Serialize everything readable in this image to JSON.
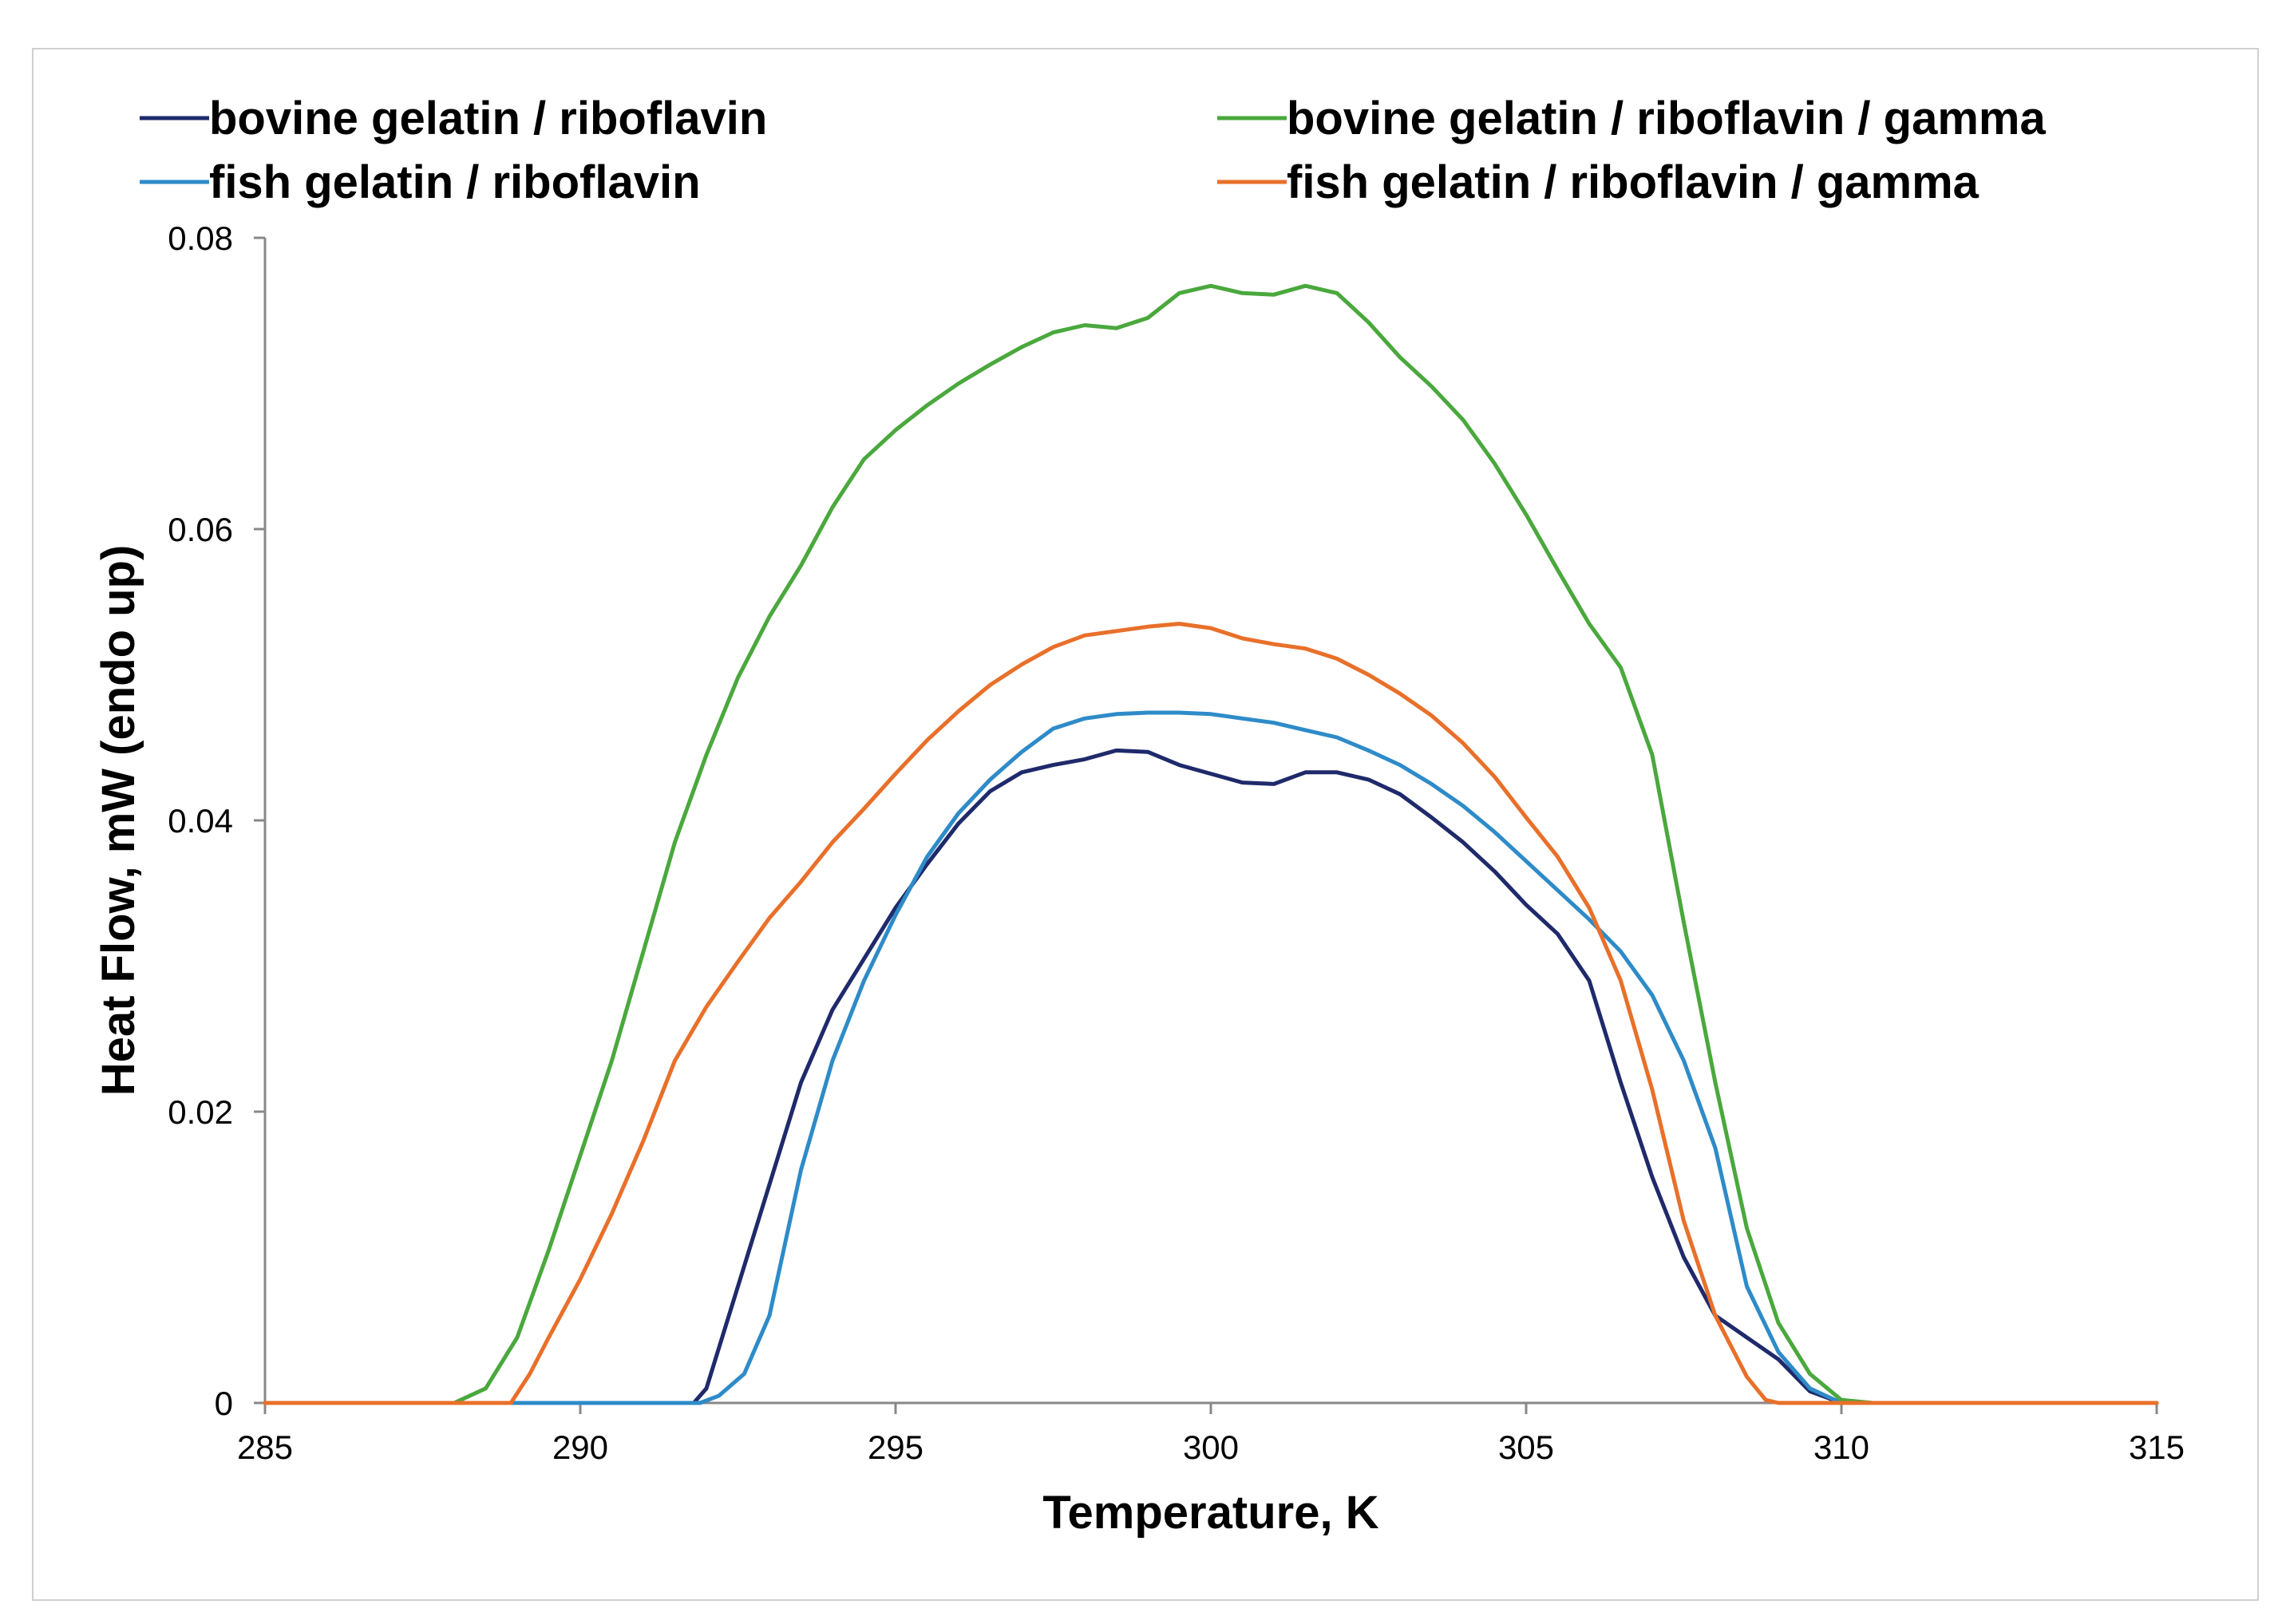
{
  "chart_data": {
    "type": "line",
    "title": "",
    "xlabel": "Temperature, K",
    "ylabel": "Heat Flow,  mW (endo up)",
    "xlim": [
      285,
      315
    ],
    "ylim": [
      0,
      0.08
    ],
    "x_ticks": [
      285,
      290,
      295,
      300,
      305,
      310,
      315
    ],
    "x_tick_labels": [
      "285",
      "290",
      "295",
      "300",
      "305",
      "310",
      "315"
    ],
    "y_ticks": [
      0,
      0.02,
      0.04,
      0.06,
      0.08
    ],
    "y_tick_labels": [
      "0",
      "0.02",
      "0.04",
      "0.06",
      "0.08"
    ],
    "grid": false,
    "legend_position": "top",
    "series": [
      {
        "name": "bovine gelatin / riboflavin",
        "color": "#1f2a6b",
        "points": [
          [
            285,
            0
          ],
          [
            291.8,
            0
          ],
          [
            292,
            0.001
          ],
          [
            292.5,
            0.008
          ],
          [
            293,
            0.015
          ],
          [
            293.5,
            0.022
          ],
          [
            294,
            0.027
          ],
          [
            294.5,
            0.0305
          ],
          [
            295,
            0.034
          ],
          [
            295.5,
            0.037
          ],
          [
            296,
            0.0398
          ],
          [
            296.5,
            0.042
          ],
          [
            297,
            0.0433
          ],
          [
            297.5,
            0.0438
          ],
          [
            298,
            0.0442
          ],
          [
            298.5,
            0.0448
          ],
          [
            299,
            0.0447
          ],
          [
            299.5,
            0.0438
          ],
          [
            300,
            0.0432
          ],
          [
            300.5,
            0.0426
          ],
          [
            301,
            0.0425
          ],
          [
            301.5,
            0.0433
          ],
          [
            302,
            0.0433
          ],
          [
            302.5,
            0.0428
          ],
          [
            303,
            0.0418
          ],
          [
            303.5,
            0.0402
          ],
          [
            304,
            0.0385
          ],
          [
            304.5,
            0.0365
          ],
          [
            305,
            0.0342
          ],
          [
            305.5,
            0.0322
          ],
          [
            306,
            0.029
          ],
          [
            306.5,
            0.022
          ],
          [
            307,
            0.0155
          ],
          [
            307.5,
            0.01
          ],
          [
            308,
            0.006
          ],
          [
            308.5,
            0.0045
          ],
          [
            309,
            0.003
          ],
          [
            309.5,
            0.0008
          ],
          [
            310,
            0
          ],
          [
            315,
            0
          ]
        ]
      },
      {
        "name": "fish gelatin / riboflavin",
        "color": "#2e8bc8",
        "points": [
          [
            285,
            0
          ],
          [
            291.9,
            0
          ],
          [
            292.2,
            0.0005
          ],
          [
            292.6,
            0.002
          ],
          [
            293,
            0.006
          ],
          [
            293.5,
            0.016
          ],
          [
            294,
            0.0235
          ],
          [
            294.5,
            0.029
          ],
          [
            295,
            0.0335
          ],
          [
            295.5,
            0.0375
          ],
          [
            296,
            0.0405
          ],
          [
            296.5,
            0.0428
          ],
          [
            297,
            0.0447
          ],
          [
            297.5,
            0.0463
          ],
          [
            298,
            0.047
          ],
          [
            298.5,
            0.0473
          ],
          [
            299,
            0.0474
          ],
          [
            299.5,
            0.0474
          ],
          [
            300,
            0.0473
          ],
          [
            300.5,
            0.047
          ],
          [
            301,
            0.0467
          ],
          [
            301.5,
            0.0462
          ],
          [
            302,
            0.0457
          ],
          [
            302.5,
            0.0448
          ],
          [
            303,
            0.0438
          ],
          [
            303.5,
            0.0425
          ],
          [
            304,
            0.041
          ],
          [
            304.5,
            0.0392
          ],
          [
            305,
            0.0372
          ],
          [
            305.5,
            0.0352
          ],
          [
            306,
            0.0332
          ],
          [
            306.5,
            0.031
          ],
          [
            307,
            0.028
          ],
          [
            307.5,
            0.0235
          ],
          [
            308,
            0.0175
          ],
          [
            308.5,
            0.008
          ],
          [
            309,
            0.0035
          ],
          [
            309.5,
            0.001
          ],
          [
            310,
            0
          ],
          [
            315,
            0
          ]
        ]
      },
      {
        "name": "bovine gelatin / riboflavin / gamma",
        "color": "#4aa83d",
        "points": [
          [
            285,
            0
          ],
          [
            288,
            0
          ],
          [
            288.5,
            0.001
          ],
          [
            289,
            0.0045
          ],
          [
            289.5,
            0.0105
          ],
          [
            290,
            0.017
          ],
          [
            290.5,
            0.0235
          ],
          [
            291,
            0.031
          ],
          [
            291.5,
            0.0385
          ],
          [
            292,
            0.0445
          ],
          [
            292.5,
            0.0498
          ],
          [
            293,
            0.054
          ],
          [
            293.5,
            0.0575
          ],
          [
            294,
            0.0615
          ],
          [
            294.5,
            0.0648
          ],
          [
            295,
            0.0668
          ],
          [
            295.5,
            0.0685
          ],
          [
            296,
            0.07
          ],
          [
            296.5,
            0.0713
          ],
          [
            297,
            0.0725
          ],
          [
            297.5,
            0.0735
          ],
          [
            298,
            0.074
          ],
          [
            298.5,
            0.0738
          ],
          [
            299,
            0.0745
          ],
          [
            299.5,
            0.0762
          ],
          [
            300,
            0.0767
          ],
          [
            300.5,
            0.0762
          ],
          [
            301,
            0.0761
          ],
          [
            301.5,
            0.0767
          ],
          [
            302,
            0.0762
          ],
          [
            302.5,
            0.0742
          ],
          [
            303,
            0.0718
          ],
          [
            303.5,
            0.0698
          ],
          [
            304,
            0.0675
          ],
          [
            304.5,
            0.0645
          ],
          [
            305,
            0.061
          ],
          [
            305.5,
            0.0572
          ],
          [
            306,
            0.0535
          ],
          [
            306.5,
            0.0505
          ],
          [
            307,
            0.0445
          ],
          [
            307.5,
            0.033
          ],
          [
            308,
            0.022
          ],
          [
            308.5,
            0.012
          ],
          [
            309,
            0.0055
          ],
          [
            309.5,
            0.002
          ],
          [
            310,
            0.0002
          ],
          [
            310.5,
            0
          ],
          [
            315,
            0
          ]
        ]
      },
      {
        "name": "fish gelatin / riboflavin / gamma",
        "color": "#e8702a",
        "points": [
          [
            285,
            0
          ],
          [
            288.9,
            0
          ],
          [
            289.2,
            0.002
          ],
          [
            289.5,
            0.0045
          ],
          [
            290,
            0.0085
          ],
          [
            290.5,
            0.013
          ],
          [
            291,
            0.018
          ],
          [
            291.5,
            0.0235
          ],
          [
            292,
            0.0272
          ],
          [
            292.5,
            0.0303
          ],
          [
            293,
            0.0333
          ],
          [
            293.5,
            0.0358
          ],
          [
            294,
            0.0385
          ],
          [
            294.5,
            0.0408
          ],
          [
            295,
            0.0432
          ],
          [
            295.5,
            0.0455
          ],
          [
            296,
            0.0475
          ],
          [
            296.5,
            0.0493
          ],
          [
            297,
            0.0507
          ],
          [
            297.5,
            0.0519
          ],
          [
            298,
            0.0527
          ],
          [
            298.5,
            0.053
          ],
          [
            299,
            0.0533
          ],
          [
            299.5,
            0.0535
          ],
          [
            300,
            0.0532
          ],
          [
            300.5,
            0.0525
          ],
          [
            301,
            0.0521
          ],
          [
            301.5,
            0.0518
          ],
          [
            302,
            0.0511
          ],
          [
            302.5,
            0.05
          ],
          [
            303,
            0.0487
          ],
          [
            303.5,
            0.0472
          ],
          [
            304,
            0.0453
          ],
          [
            304.5,
            0.043
          ],
          [
            305,
            0.0402
          ],
          [
            305.5,
            0.0375
          ],
          [
            306,
            0.034
          ],
          [
            306.5,
            0.029
          ],
          [
            307,
            0.0215
          ],
          [
            307.5,
            0.0125
          ],
          [
            308,
            0.006
          ],
          [
            308.5,
            0.0018
          ],
          [
            308.8,
            0.0002
          ],
          [
            309,
            0
          ],
          [
            315,
            0
          ]
        ]
      }
    ]
  }
}
